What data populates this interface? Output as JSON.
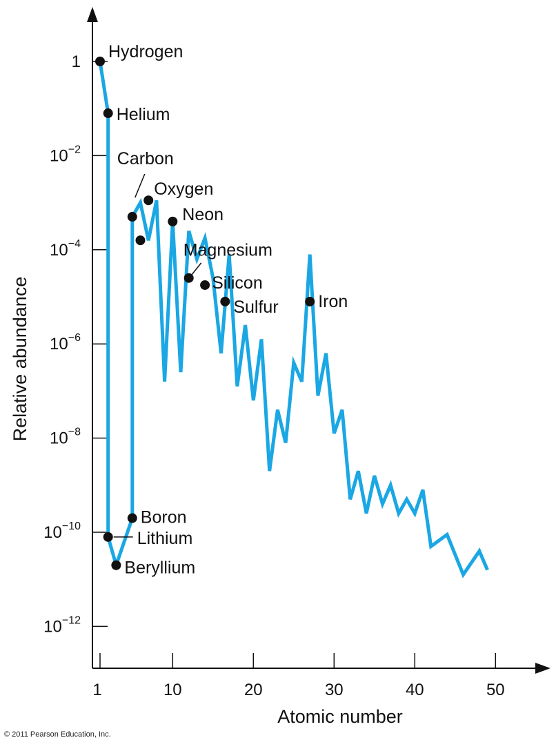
{
  "chart_data": {
    "type": "line",
    "xlabel": "Atomic number",
    "ylabel": "Relative abundance",
    "xlim": [
      1,
      56
    ],
    "ylim_log10": [
      -13,
      1.2
    ],
    "y_scale": "log",
    "grid": false,
    "line_color": "#1aa7e4",
    "x_ticks": [
      {
        "value": 1,
        "label": "1"
      },
      {
        "value": 10,
        "label": "10"
      },
      {
        "value": 20,
        "label": "20"
      },
      {
        "value": 30,
        "label": "30"
      },
      {
        "value": 40,
        "label": "40"
      },
      {
        "value": 50,
        "label": "50"
      }
    ],
    "y_ticks": [
      {
        "log10": 0,
        "base": "1",
        "exp": ""
      },
      {
        "log10": -2,
        "base": "10",
        "exp": "−2"
      },
      {
        "log10": -4,
        "base": "10",
        "exp": "−4"
      },
      {
        "log10": -6,
        "base": "10",
        "exp": "−6"
      },
      {
        "log10": -8,
        "base": "10",
        "exp": "−8"
      },
      {
        "log10": -10,
        "base": "10",
        "exp": "−10"
      },
      {
        "log10": -12,
        "base": "10",
        "exp": "−12"
      }
    ],
    "series": [
      {
        "x": [
          1,
          2,
          2,
          3,
          4,
          5,
          5,
          6,
          7,
          8,
          9,
          10,
          11,
          12,
          13,
          14,
          15,
          16,
          17,
          18,
          19,
          20,
          21,
          22,
          23,
          24,
          25,
          26,
          27,
          28,
          29,
          30,
          31,
          32,
          33,
          34,
          35,
          36,
          37,
          38,
          39,
          40,
          41,
          42,
          44,
          46,
          48,
          49
        ],
        "log10_y": [
          0,
          -1.1,
          -10.1,
          -10.7,
          -10.2,
          -9.7,
          -3.3,
          -3.0,
          -3.8,
          -2.95,
          -6.8,
          -3.4,
          -6.6,
          -3.6,
          -4.2,
          -3.75,
          -4.6,
          -6.2,
          -4.1,
          -6.9,
          -5.6,
          -7.2,
          -5.9,
          -8.7,
          -7.4,
          -8.1,
          -6.4,
          -6.8,
          -4.1,
          -7.1,
          -6.2,
          -7.9,
          -7.4,
          -9.3,
          -8.7,
          -9.6,
          -8.8,
          -9.4,
          -9.0,
          -9.6,
          -9.3,
          -9.6,
          -9.1,
          -10.3,
          -10.05,
          -10.9,
          -10.4,
          -10.8
        ]
      }
    ],
    "labeled_points": [
      {
        "x": 1,
        "log10_y": 0,
        "label": "Hydrogen"
      },
      {
        "x": 2,
        "log10_y": -1.1,
        "label": "Helium"
      },
      {
        "x": 2,
        "log10_y": -10.1,
        "label": "Lithium"
      },
      {
        "x": 3,
        "log10_y": -10.7,
        "label": "Beryllium"
      },
      {
        "x": 5,
        "log10_y": -9.7,
        "label": "Boron"
      },
      {
        "x": 5,
        "log10_y": -3.3,
        "label": "Carbon"
      },
      {
        "x": 6,
        "log10_y": -3.8,
        "label": ""
      },
      {
        "x": 7,
        "log10_y": -2.95,
        "label": "Oxygen"
      },
      {
        "x": 10,
        "log10_y": -3.4,
        "label": "Neon"
      },
      {
        "x": 12,
        "log10_y": -4.6,
        "label": "Magnesium"
      },
      {
        "x": 14,
        "log10_y": -4.75,
        "label": "Silicon"
      },
      {
        "x": 16.5,
        "log10_y": -5.1,
        "label": "Sulfur"
      },
      {
        "x": 27,
        "log10_y": -5.1,
        "label": "Iron"
      }
    ]
  },
  "footer": {
    "copyright": "© 2011 Pearson Education, Inc."
  }
}
